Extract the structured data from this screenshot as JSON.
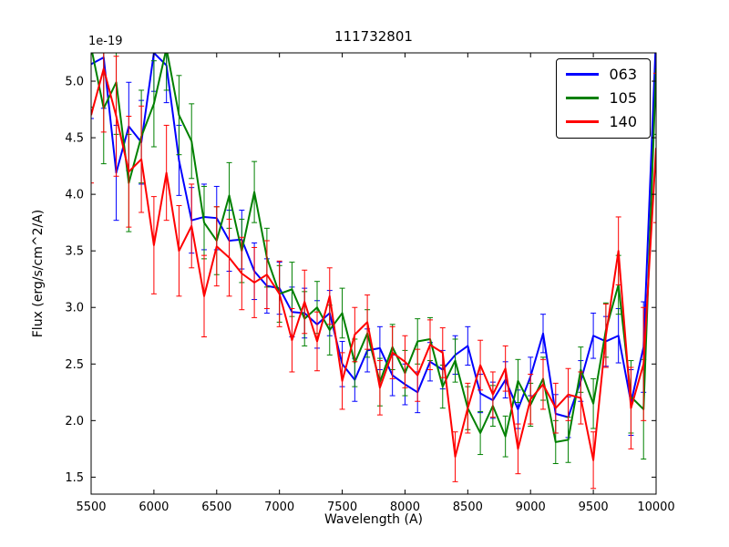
{
  "chart_data": {
    "type": "line",
    "title": "111732801",
    "xlabel": "Wavelength (A)",
    "ylabel": "Flux (erg/s/cm^2/A)",
    "offset_text": "1e-19",
    "xlim": [
      5500,
      10000
    ],
    "ylim": [
      1.35,
      5.25
    ],
    "xticks": [
      5500,
      6000,
      6500,
      7000,
      7500,
      8000,
      8500,
      9000,
      9500,
      10000
    ],
    "yticks": [
      1.5,
      2.0,
      2.5,
      3.0,
      3.5,
      4.0,
      4.5,
      5.0
    ],
    "grid": false,
    "error_bars": true,
    "legend_position": "upper right",
    "background_color": "#ffffff",
    "x": [
      5500,
      5600,
      5700,
      5800,
      5900,
      6000,
      6100,
      6200,
      6300,
      6400,
      6500,
      6600,
      6700,
      6800,
      6900,
      7000,
      7100,
      7200,
      7300,
      7400,
      7500,
      7600,
      7700,
      7800,
      7900,
      8000,
      8100,
      8200,
      8300,
      8400,
      8500,
      8600,
      8700,
      8800,
      8900,
      9000,
      9100,
      9200,
      9300,
      9400,
      9500,
      9600,
      9700,
      9800,
      9900,
      10000
    ],
    "series": [
      {
        "name": "063",
        "color": "#0000ff",
        "values": [
          5.15,
          5.21,
          4.19,
          4.6,
          4.46,
          5.25,
          5.14,
          4.3,
          3.77,
          3.8,
          3.79,
          3.59,
          3.6,
          3.32,
          3.19,
          3.17,
          2.96,
          2.95,
          2.85,
          2.95,
          2.5,
          2.36,
          2.62,
          2.64,
          2.4,
          2.32,
          2.25,
          2.52,
          2.45,
          2.58,
          2.66,
          2.24,
          2.18,
          2.36,
          2.1,
          2.39,
          2.77,
          2.06,
          2.03,
          2.35,
          2.75,
          2.7,
          2.75,
          2.16,
          2.65,
          5.41
        ],
        "errors": [
          0.48,
          0.45,
          0.42,
          0.39,
          0.37,
          0.34,
          0.33,
          0.31,
          0.29,
          0.29,
          0.28,
          0.27,
          0.26,
          0.25,
          0.24,
          0.23,
          0.22,
          0.22,
          0.21,
          0.2,
          0.2,
          0.19,
          0.19,
          0.19,
          0.18,
          0.18,
          0.18,
          0.17,
          0.17,
          0.17,
          0.17,
          0.17,
          0.16,
          0.16,
          0.17,
          0.17,
          0.17,
          0.17,
          0.18,
          0.18,
          0.2,
          0.22,
          0.24,
          0.29,
          0.4,
          0.52
        ]
      },
      {
        "name": "105",
        "color": "#008000",
        "values": [
          5.3,
          4.76,
          4.99,
          4.1,
          4.51,
          4.8,
          5.29,
          4.7,
          4.47,
          3.75,
          3.59,
          3.99,
          3.5,
          4.02,
          3.44,
          3.12,
          3.16,
          2.9,
          3.0,
          2.8,
          2.95,
          2.51,
          2.77,
          2.34,
          2.65,
          2.42,
          2.7,
          2.72,
          2.3,
          2.53,
          2.11,
          1.89,
          2.13,
          1.86,
          2.35,
          2.14,
          2.37,
          1.81,
          1.83,
          2.45,
          2.15,
          2.8,
          3.2,
          2.21,
          2.1,
          5.11
        ],
        "errors": [
          0.53,
          0.49,
          0.46,
          0.43,
          0.41,
          0.38,
          0.37,
          0.35,
          0.33,
          0.32,
          0.3,
          0.29,
          0.28,
          0.27,
          0.26,
          0.25,
          0.24,
          0.24,
          0.23,
          0.22,
          0.22,
          0.21,
          0.21,
          0.21,
          0.2,
          0.2,
          0.2,
          0.19,
          0.19,
          0.19,
          0.19,
          0.19,
          0.18,
          0.18,
          0.19,
          0.19,
          0.19,
          0.19,
          0.2,
          0.2,
          0.22,
          0.24,
          0.26,
          0.32,
          0.44,
          0.58
        ]
      },
      {
        "name": "140",
        "color": "#ff0000",
        "values": [
          4.7,
          5.11,
          4.69,
          4.2,
          4.31,
          3.55,
          4.19,
          3.5,
          3.72,
          3.1,
          3.54,
          3.44,
          3.3,
          3.22,
          3.29,
          3.12,
          2.71,
          3.05,
          2.7,
          3.1,
          2.35,
          2.76,
          2.87,
          2.29,
          2.6,
          2.52,
          2.4,
          2.67,
          2.6,
          1.68,
          2.11,
          2.49,
          2.23,
          2.46,
          1.75,
          2.19,
          2.32,
          2.11,
          2.23,
          2.2,
          1.65,
          2.75,
          3.5,
          2.11,
          2.5,
          4.41
        ],
        "errors": [
          0.6,
          0.56,
          0.53,
          0.49,
          0.47,
          0.43,
          0.42,
          0.4,
          0.37,
          0.36,
          0.35,
          0.34,
          0.32,
          0.31,
          0.3,
          0.29,
          0.28,
          0.28,
          0.26,
          0.25,
          0.25,
          0.24,
          0.24,
          0.24,
          0.23,
          0.23,
          0.23,
          0.22,
          0.22,
          0.22,
          0.22,
          0.22,
          0.2,
          0.2,
          0.22,
          0.22,
          0.22,
          0.22,
          0.23,
          0.23,
          0.25,
          0.28,
          0.3,
          0.36,
          0.5,
          0.66
        ]
      }
    ]
  }
}
